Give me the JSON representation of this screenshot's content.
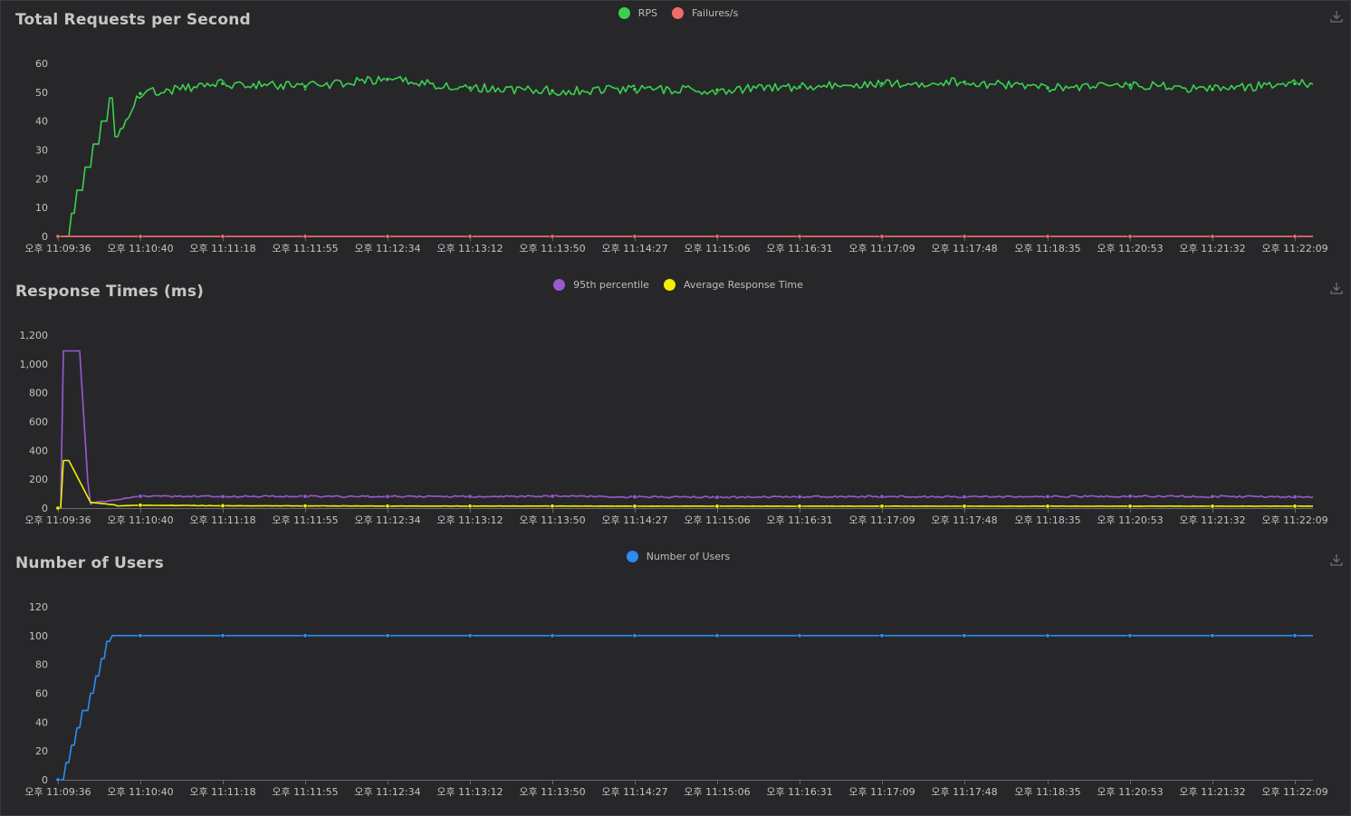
{
  "charts": [
    {
      "title": "Total Requests per Second",
      "legend": [
        {
          "name": "RPS",
          "color": "#3ad14e"
        },
        {
          "name": "Failures/s",
          "color": "#f36a6a"
        }
      ]
    },
    {
      "title": "Response Times (ms)",
      "legend": [
        {
          "name": "95th percentile",
          "color": "#9b59d0"
        },
        {
          "name": "Average Response Time",
          "color": "#f0f000"
        }
      ]
    },
    {
      "title": "Number of Users",
      "legend": [
        {
          "name": "Number of Users",
          "color": "#2b8cf2"
        }
      ]
    }
  ],
  "chart_data": [
    {
      "type": "line",
      "title": "Total Requests per Second",
      "x": [
        "오후 11:09:36",
        "오후 11:10:40",
        "오후 11:11:18",
        "오후 11:11:55",
        "오후 11:12:34",
        "오후 11:13:12",
        "오후 11:13:50",
        "오후 11:14:27",
        "오후 11:15:06",
        "오후 11:16:31",
        "오후 11:17:09",
        "오후 11:17:48",
        "오후 11:18:35",
        "오후 11:20:53",
        "오후 11:21:32",
        "오후 11:22:09"
      ],
      "ylim": [
        0,
        60
      ],
      "yticks": [
        0,
        10,
        20,
        30,
        40,
        50,
        60
      ],
      "grid": false,
      "legend_position": "top-center",
      "series": [
        {
          "name": "RPS",
          "color": "#3ad14e",
          "values": [
            0,
            49.5,
            53,
            52,
            54.5,
            51.5,
            50.5,
            51,
            50.8,
            51.8,
            53,
            53.5,
            51.5,
            52.5,
            51,
            53
          ]
        },
        {
          "name": "Failures/s",
          "color": "#f36a6a",
          "values": [
            0,
            0,
            0,
            0,
            0,
            0,
            0,
            0,
            0,
            0,
            0,
            0,
            0,
            0,
            0,
            0
          ]
        }
      ]
    },
    {
      "type": "line",
      "title": "Response Times (ms)",
      "x": [
        "오후 11:09:36",
        "오후 11:10:40",
        "오후 11:11:18",
        "오후 11:11:55",
        "오후 11:12:34",
        "오후 11:13:12",
        "오후 11:13:50",
        "오후 11:14:27",
        "오후 11:15:06",
        "오후 11:16:31",
        "오후 11:17:09",
        "오후 11:17:48",
        "오후 11:18:35",
        "오후 11:20:53",
        "오후 11:21:32",
        "오후 11:22:09"
      ],
      "ylim": [
        0,
        1200
      ],
      "yticks": [
        0,
        200,
        400,
        600,
        800,
        1000,
        1200
      ],
      "grid": false,
      "legend_position": "top-center",
      "series": [
        {
          "name": "95th percentile",
          "color": "#9b59d0",
          "values": [
            0,
            82,
            80,
            81,
            80,
            80,
            82,
            78,
            75,
            78,
            80,
            78,
            80,
            82,
            80,
            78
          ]
        },
        {
          "name": "Average Response Time",
          "color": "#f0f000",
          "values": [
            0,
            20,
            16,
            15,
            14,
            14,
            14,
            13,
            13,
            13,
            13,
            13,
            13,
            13,
            13,
            13
          ]
        }
      ]
    },
    {
      "type": "line",
      "title": "Number of Users",
      "x": [
        "오후 11:09:36",
        "오후 11:10:40",
        "오후 11:11:18",
        "오후 11:11:55",
        "오후 11:12:34",
        "오후 11:13:12",
        "오후 11:13:50",
        "오후 11:14:27",
        "오후 11:15:06",
        "오후 11:16:31",
        "오후 11:17:09",
        "오후 11:17:48",
        "오후 11:18:35",
        "오후 11:20:53",
        "오후 11:21:32",
        "오후 11:22:09"
      ],
      "ylim": [
        0,
        120
      ],
      "yticks": [
        0,
        20,
        40,
        60,
        80,
        100,
        120
      ],
      "grid": false,
      "legend_position": "top-center",
      "series": [
        {
          "name": "Number of Users",
          "color": "#2b8cf2",
          "values": [
            0,
            100,
            100,
            100,
            100,
            100,
            100,
            100,
            100,
            100,
            100,
            100,
            100,
            100,
            100,
            100
          ]
        }
      ]
    }
  ]
}
